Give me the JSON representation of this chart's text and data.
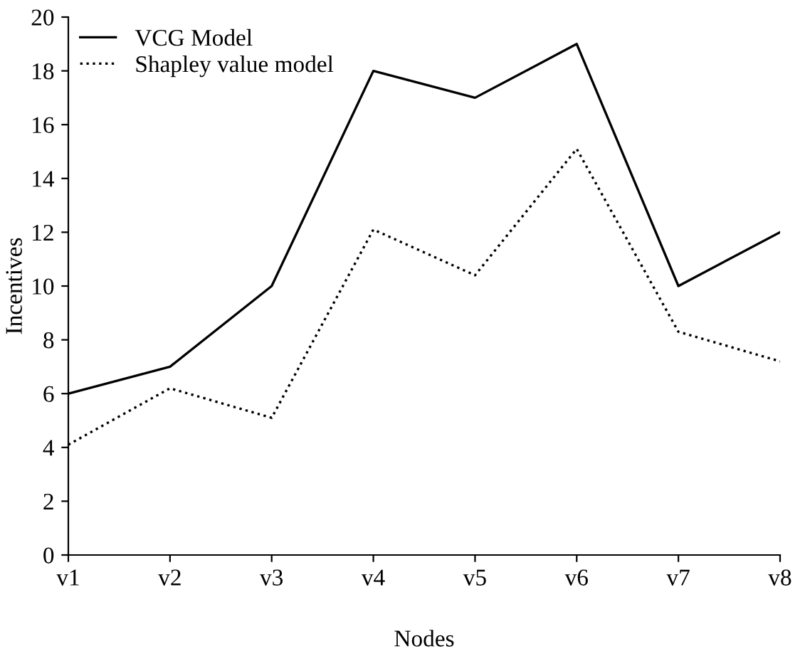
{
  "chart_data": {
    "type": "line",
    "xlabel": "Nodes",
    "ylabel": "Incentives",
    "categories": [
      "v1",
      "v2",
      "v3",
      "v4",
      "v5",
      "v6",
      "v7",
      "v8"
    ],
    "series": [
      {
        "name": "VCG Model",
        "color": "#000000",
        "line_style": "solid",
        "values": [
          6,
          7,
          10,
          18,
          17,
          19,
          10,
          12
        ]
      },
      {
        "name": "Shapley value model",
        "color": "#000000",
        "line_style": "dotted",
        "values": [
          4.1,
          6.2,
          5.1,
          12.1,
          10.4,
          15.1,
          8.3,
          7.2
        ]
      }
    ],
    "ylim": [
      0,
      20
    ],
    "yticks": [
      0,
      2,
      4,
      6,
      8,
      10,
      12,
      14,
      16,
      18,
      20
    ],
    "grid": false,
    "legend": "top left",
    "marker": "none"
  }
}
